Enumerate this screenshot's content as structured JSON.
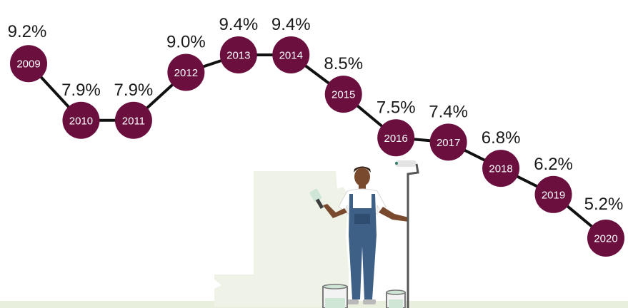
{
  "chart_data": {
    "type": "line",
    "title": "",
    "xlabel": "",
    "ylabel": "",
    "categories": [
      "2009",
      "2010",
      "2011",
      "2012",
      "2013",
      "2014",
      "2015",
      "2016",
      "2017",
      "2018",
      "2019",
      "2020"
    ],
    "values": [
      9.2,
      7.9,
      7.9,
      9.0,
      9.4,
      9.4,
      8.5,
      7.5,
      7.4,
      6.8,
      6.2,
      5.2
    ],
    "value_labels": [
      "9.2%",
      "7.9%",
      "7.9%",
      "9.0%",
      "9.4%",
      "9.4%",
      "8.5%",
      "7.5%",
      "7.4%",
      "6.8%",
      "6.2%",
      "5.2%"
    ],
    "unit": "%",
    "ylim": [
      5.2,
      9.4
    ],
    "grid": false,
    "legend": "none"
  },
  "colors": {
    "marker": "#6b0f3f",
    "line": "#111111",
    "value_text": "#1a1a1a",
    "year_text": "#ffffff",
    "wall": "#eff2e6",
    "floor": "#e8efdc",
    "overalls": "#3e5f86",
    "skin": "#7a4a2e",
    "shirt": "#ffffff",
    "paint": "#cfe6d6"
  },
  "illustration": {
    "subject": "painter-with-roller-and-paint-cans"
  }
}
